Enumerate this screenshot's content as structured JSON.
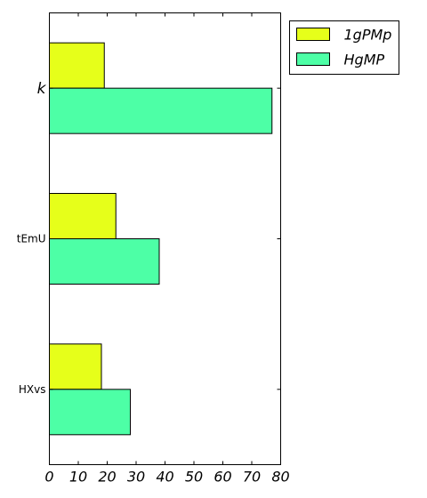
{
  "chart_data": {
    "type": "bar",
    "orientation": "horizontal",
    "categories": [
      "k",
      "tEmU",
      "HXvs"
    ],
    "category_styles": [
      "italic",
      "normal",
      "normal"
    ],
    "series": [
      {
        "name": "1gPMp",
        "values": [
          19,
          23,
          18
        ],
        "color": "#e6ff1a"
      },
      {
        "name": "HgMP",
        "values": [
          77,
          38,
          28
        ],
        "color": "#4dffa6"
      }
    ],
    "xlim": [
      0,
      80
    ],
    "xticks": [
      0,
      10,
      20,
      30,
      40,
      50,
      60,
      70,
      80
    ],
    "title": "",
    "xlabel": "",
    "ylabel": "",
    "grid": false,
    "legend": "outside top-right"
  }
}
